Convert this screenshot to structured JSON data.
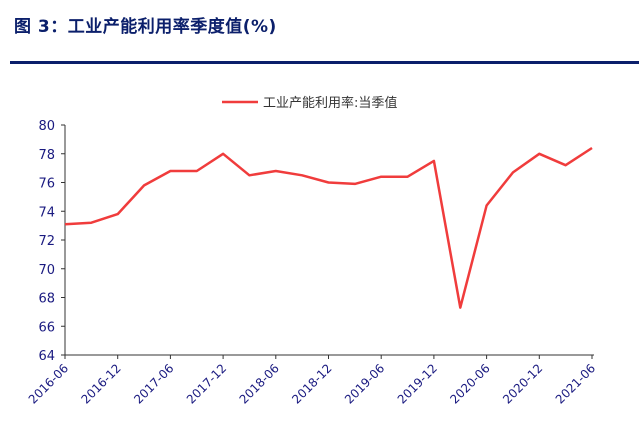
{
  "figure": {
    "title": "图 3：工业产能利用率季度值(%)",
    "accent_color": "#0b1f6b",
    "line_color": "#f03c3c",
    "axis_label_color": "#1a1a80"
  },
  "chart_data": {
    "type": "line",
    "title": "图 3：工业产能利用率季度值(%)",
    "xlabel": "",
    "ylabel": "",
    "ylim": [
      64,
      80
    ],
    "yticks": [
      64,
      66,
      68,
      70,
      72,
      74,
      76,
      78,
      80
    ],
    "grid": false,
    "legend_position": "top-center",
    "x_tick_labels": [
      "2016-06",
      "2016-12",
      "2017-06",
      "2017-12",
      "2018-06",
      "2018-12",
      "2019-06",
      "2019-12",
      "2020-06",
      "2020-12",
      "2021-06"
    ],
    "x": [
      "2016-06",
      "2016-09",
      "2016-12",
      "2017-03",
      "2017-06",
      "2017-09",
      "2017-12",
      "2018-03",
      "2018-06",
      "2018-09",
      "2018-12",
      "2019-03",
      "2019-06",
      "2019-09",
      "2019-12",
      "2020-03",
      "2020-06",
      "2020-09",
      "2020-12",
      "2021-03",
      "2021-06"
    ],
    "series": [
      {
        "name": "工业产能利用率:当季值",
        "color": "#f03c3c",
        "values": [
          73.1,
          73.2,
          73.8,
          75.8,
          76.8,
          76.8,
          78.0,
          76.5,
          76.8,
          76.5,
          76.0,
          75.9,
          76.4,
          76.4,
          77.5,
          67.3,
          74.4,
          76.7,
          78.0,
          77.2,
          78.4
        ]
      }
    ]
  }
}
